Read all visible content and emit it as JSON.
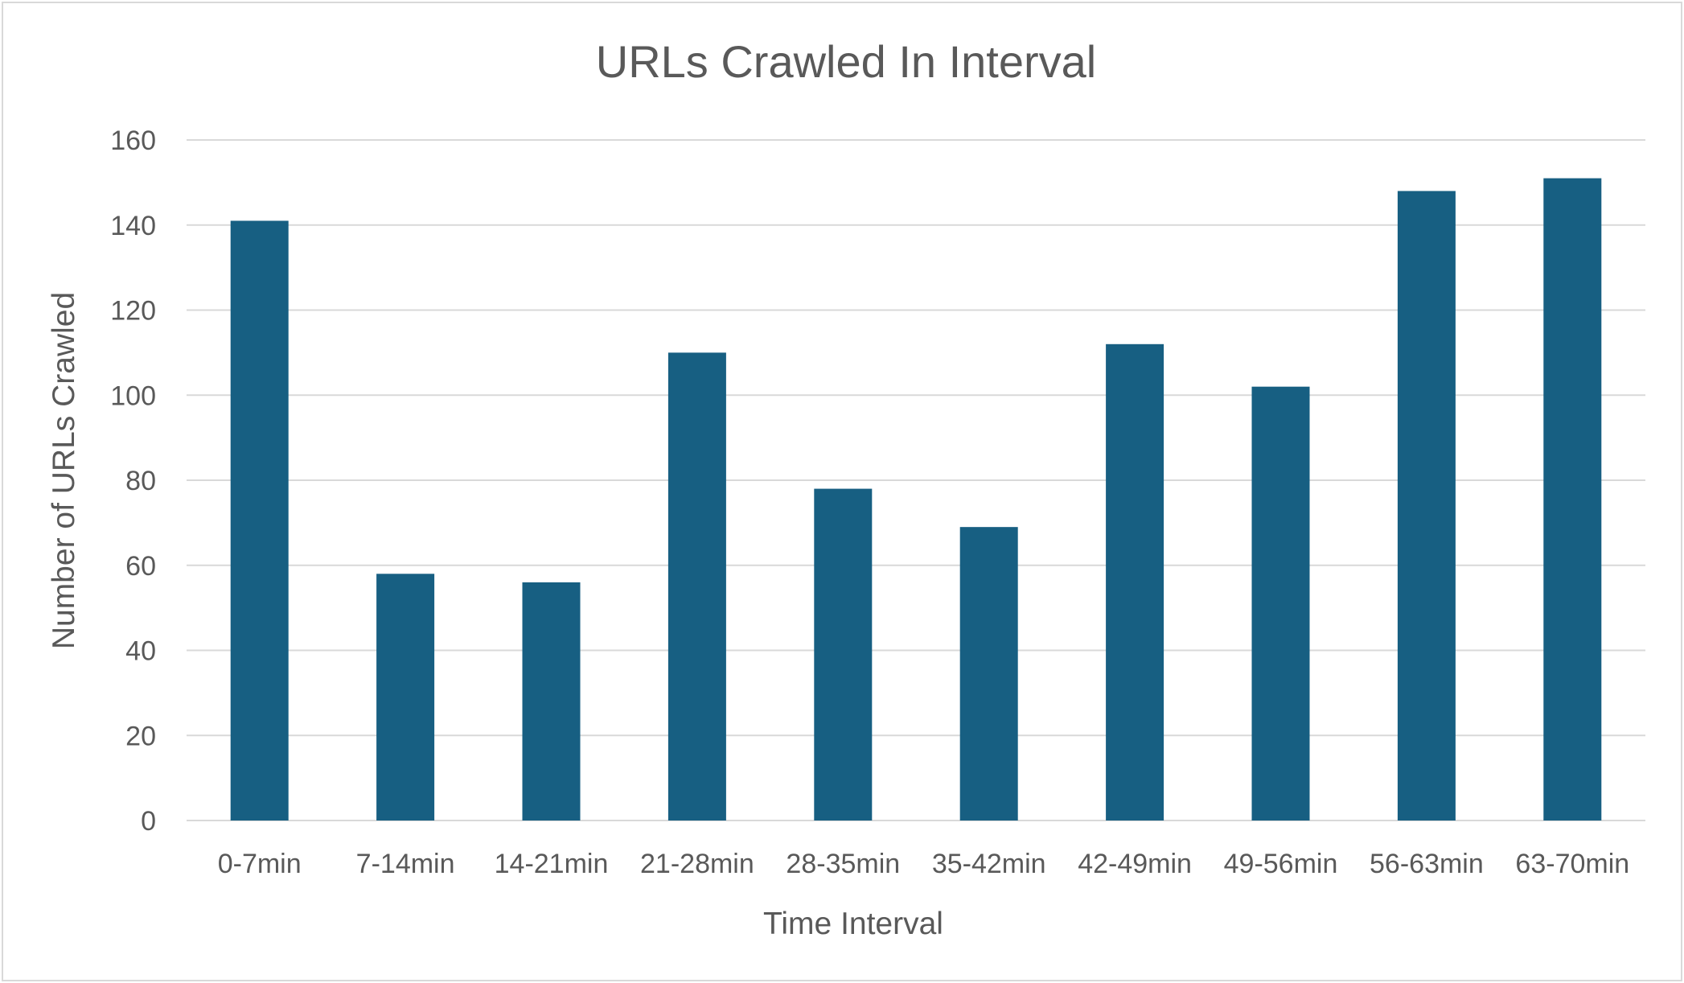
{
  "chart_data": {
    "type": "bar",
    "title": "URLs Crawled In Interval",
    "xlabel": "Time Interval",
    "ylabel": "Number of URLs  Crawled",
    "categories": [
      "0-7min",
      "7-14min",
      "14-21min",
      "21-28min",
      "28-35min",
      "35-42min",
      "42-49min",
      "49-56min",
      "56-63min",
      "63-70min"
    ],
    "series": [
      {
        "values": [
          141,
          58,
          56,
          110,
          78,
          69,
          112,
          102,
          148,
          151
        ]
      }
    ],
    "ylim": [
      0,
      160
    ],
    "yticks": [
      0,
      20,
      40,
      60,
      80,
      100,
      120,
      140,
      160
    ],
    "grid": true,
    "legend": "none",
    "bar_color": "#175f82"
  }
}
